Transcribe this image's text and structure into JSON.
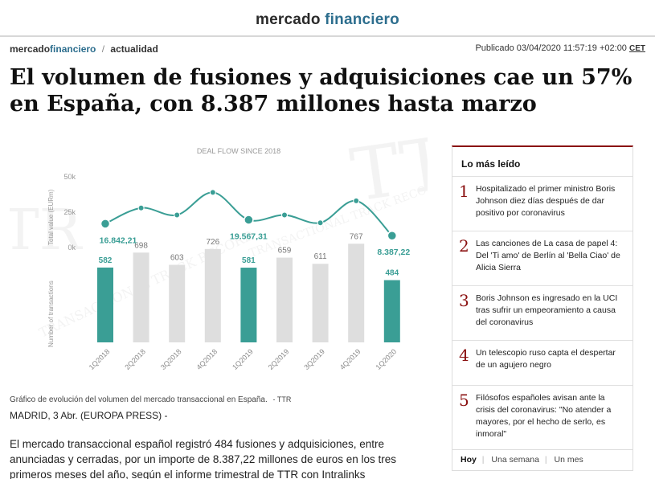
{
  "site": {
    "logo_part1": "mercado",
    "logo_part2": "financiero"
  },
  "breadcrumb": {
    "brand_part1": "mercado",
    "brand_part2": "financiero",
    "separator": "/",
    "section": "actualidad"
  },
  "published": {
    "label": "Publicado 03/04/2020 11:57:19 +02:00",
    "tz": "CET"
  },
  "article": {
    "headline": "El volumen de fusiones y adquisiciones cae un 57% en España, con 8.387 millones hasta marzo",
    "caption": "Gráfico de evolución del volumen del mercado transaccional en España.",
    "caption_source": "- TTR",
    "dateline": "MADRID, 3 Abr. (EUROPA PRESS) -",
    "body": "El mercado transaccional español registró 484 fusiones y adquisiciones, entre anunciadas y cerradas, por un importe de 8.387,22 millones de euros en los tres primeros meses del año, según el informe trimestral de TTR con Intralinks"
  },
  "sidebar": {
    "title": "Lo más leído",
    "items": [
      {
        "num": "1",
        "text": "Hospitalizado el primer ministro Boris Johnson diez días después de dar positivo por coronavirus"
      },
      {
        "num": "2",
        "text": "Las canciones de La casa de papel 4: Del 'Ti amo' de Berlín al 'Bella Ciao' de Alicia Sierra"
      },
      {
        "num": "3",
        "text": "Boris Johnson es ingresado en la UCI tras sufrir un empeoramiento a causa del coronavirus"
      },
      {
        "num": "4",
        "text": "Un telescopio ruso capta el despertar de un agujero negro"
      },
      {
        "num": "5",
        "text": "Filósofos españoles avisan ante la crisis del coronavirus: \"No atender a mayores, por el hecho de serlo, es inmoral\""
      }
    ],
    "tabs": [
      "Hoy",
      "Una semana",
      "Un mes"
    ],
    "tab_separator": "|"
  },
  "chart_data": [
    {
      "type": "line",
      "title": "DEAL FLOW SINCE 2018",
      "ylabel": "Total value (EURm)",
      "yticks": [
        "50k",
        "25k",
        "0k"
      ],
      "ylim": [
        0,
        50000
      ],
      "categories": [
        "1Q2018",
        "2Q2018",
        "3Q2018",
        "4Q2018",
        "1Q2019",
        "2Q2019",
        "3Q2019",
        "4Q2019",
        "1Q2020"
      ],
      "values": [
        16842.21,
        28000,
        23000,
        39000,
        19567.31,
        23000,
        17500,
        33000,
        8387.22
      ],
      "labels": [
        "16.842,21",
        "",
        "",
        "",
        "19.567,31",
        "",
        "",
        "",
        "8.387,22"
      ],
      "highlight_indices": [
        0,
        4,
        8
      ],
      "color": "#3a9e95"
    },
    {
      "type": "bar",
      "ylabel": "Number of transactions",
      "categories": [
        "1Q2018",
        "2Q2018",
        "3Q2018",
        "4Q2018",
        "1Q2019",
        "2Q2019",
        "3Q2019",
        "4Q2019",
        "1Q2020"
      ],
      "values": [
        582,
        698,
        603,
        726,
        581,
        659,
        611,
        767,
        484
      ],
      "labels": [
        "582",
        "698",
        "603",
        "726",
        "581",
        "659",
        "611",
        "767",
        "484"
      ],
      "highlight_indices": [
        0,
        4,
        8
      ],
      "highlight_color": "#3a9e95",
      "base_color": "#dedede",
      "watermark": "TRANSACTIONAL TRACK RECORD"
    }
  ]
}
